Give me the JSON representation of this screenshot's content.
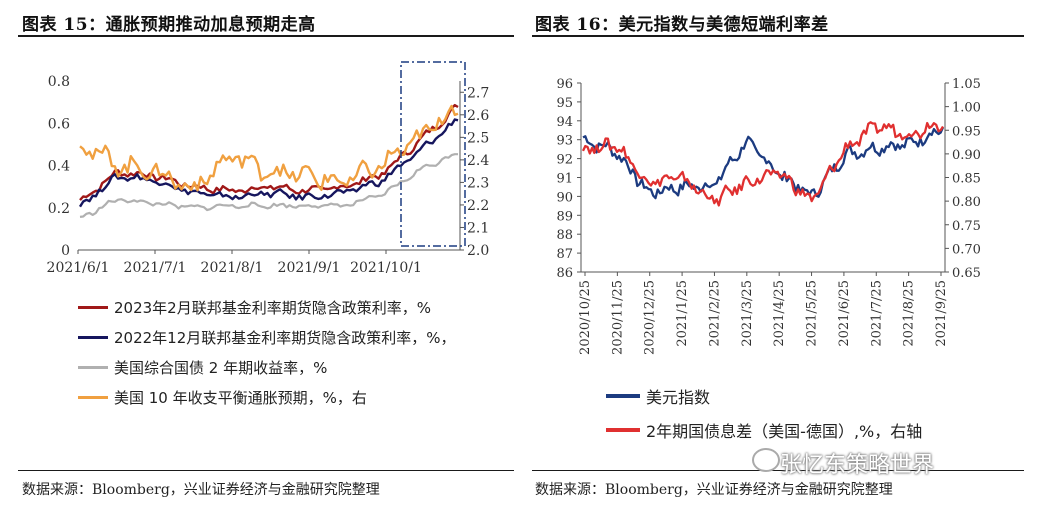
{
  "header": {
    "left_title": "图表 15：通胀预期推动加息预期走高",
    "right_title": "图表 16：美元指数与美德短端利率差"
  },
  "footer": {
    "left_source": "数据来源：Bloomberg，兴业证券经济与金融研究院整理",
    "right_source": "数据来源：Bloomberg，兴业证券经济与金融研究院整理"
  },
  "watermark": "张忆东策略世界",
  "chart_data": [
    {
      "type": "line",
      "x": [
        "2021/6/1",
        "2021/6/15",
        "2021/7/1",
        "2021/7/15",
        "2021/8/1",
        "2021/8/15",
        "2021/9/1",
        "2021/9/15",
        "2021/10/1",
        "2021/10/15",
        "2021/10/29"
      ],
      "x_ticks": [
        "2021/6/1",
        "2021/7/1",
        "2021/8/1",
        "2021/9/1",
        "2021/10/1"
      ],
      "y_left_ticks": [
        "0",
        "0.2",
        "0.4",
        "0.6",
        "0.8"
      ],
      "y_right_ticks": [
        "2.0",
        "2.1",
        "2.2",
        "2.3",
        "2.4",
        "2.5",
        "2.6",
        "2.7"
      ],
      "ylim_left": [
        0,
        0.8
      ],
      "ylim_right": [
        2.0,
        2.75
      ],
      "legend_position": "bottom",
      "grid": false,
      "series": [
        {
          "name": "2023年2月联邦基金利率期货隐含政策利率，%",
          "color": "#a01818",
          "axis": "left",
          "values": [
            0.23,
            0.37,
            0.35,
            0.3,
            0.28,
            0.3,
            0.28,
            0.3,
            0.36,
            0.52,
            0.68
          ]
        },
        {
          "name": "2022年12月联邦基金利率期货隐含政策利率，%，",
          "color": "#16165e",
          "axis": "left",
          "values": [
            0.21,
            0.35,
            0.33,
            0.27,
            0.25,
            0.27,
            0.25,
            0.27,
            0.33,
            0.47,
            0.62
          ]
        },
        {
          "name": "美国综合国债 2 年期收益率，%",
          "color": "#b0b0b0",
          "axis": "left",
          "values": [
            0.15,
            0.24,
            0.22,
            0.2,
            0.21,
            0.21,
            0.21,
            0.21,
            0.26,
            0.38,
            0.46
          ]
        },
        {
          "name": "美国 10 年收支平衡通胀预期，%，右",
          "color": "#f0a040",
          "axis": "right",
          "values": [
            2.47,
            2.38,
            2.35,
            2.27,
            2.42,
            2.35,
            2.33,
            2.3,
            2.38,
            2.5,
            2.64
          ]
        }
      ]
    },
    {
      "type": "line",
      "x": [
        "2020/10/25",
        "2020/11/25",
        "2020/12/25",
        "2021/1/25",
        "2021/2/25",
        "2021/3/25",
        "2021/4/25",
        "2021/5/25",
        "2021/6/25",
        "2021/7/25",
        "2021/8/25",
        "2021/9/25"
      ],
      "x_ticks": [
        "2020/10/25",
        "2020/11/25",
        "2020/12/25",
        "2021/1/25",
        "2021/2/25",
        "2021/3/25",
        "2021/4/25",
        "2021/5/25",
        "2021/6/25",
        "2021/7/25",
        "2021/8/25",
        "2021/9/25"
      ],
      "y_left_ticks": [
        "86",
        "87",
        "88",
        "89",
        "90",
        "91",
        "92",
        "93",
        "94",
        "95",
        "96"
      ],
      "y_right_ticks": [
        "0.65",
        "0.70",
        "0.75",
        "0.80",
        "0.85",
        "0.90",
        "0.95",
        "1.00",
        "1.05"
      ],
      "ylim_left": [
        86,
        96
      ],
      "ylim_right": [
        0.65,
        1.05
      ],
      "legend_position": "bottom",
      "grid": false,
      "series": [
        {
          "name": "美元指数",
          "color": "#1c3b80",
          "axis": "left",
          "values": [
            93.0,
            92.4,
            90.2,
            90.5,
            90.6,
            92.9,
            91.2,
            90.0,
            92.2,
            92.6,
            92.8,
            93.6
          ]
        },
        {
          "name": "2年期国债息差（美国-德国）,%，右轴",
          "color": "#e03030",
          "axis": "right",
          "values": [
            0.91,
            0.92,
            0.84,
            0.85,
            0.8,
            0.84,
            0.86,
            0.8,
            0.91,
            0.96,
            0.94,
            0.97
          ]
        }
      ]
    }
  ]
}
